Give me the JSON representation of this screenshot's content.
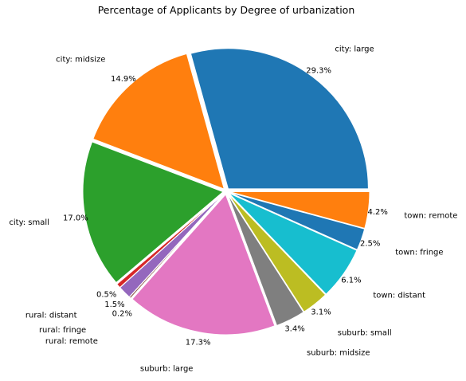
{
  "chart_data": {
    "type": "pie",
    "title": "Percentage of Applicants by Degree of urbanization",
    "slices": [
      {
        "label": "city: large",
        "value": 29.3,
        "pct_label": "29.3%",
        "color": "#1f77b4"
      },
      {
        "label": "city: midsize",
        "value": 14.9,
        "pct_label": "14.9%",
        "color": "#ff7f0e"
      },
      {
        "label": "city: small",
        "value": 17.0,
        "pct_label": "17.0%",
        "color": "#2ca02c"
      },
      {
        "label": "rural: distant",
        "value": 0.5,
        "pct_label": "0.5%",
        "color": "#d62728"
      },
      {
        "label": "rural: fringe",
        "value": 1.5,
        "pct_label": "1.5%",
        "color": "#9467bd"
      },
      {
        "label": "rural: remote",
        "value": 0.2,
        "pct_label": "0.2%",
        "color": "#8c564b"
      },
      {
        "label": "suburb: large",
        "value": 17.3,
        "pct_label": "17.3%",
        "color": "#e377c2"
      },
      {
        "label": "suburb: midsize",
        "value": 3.4,
        "pct_label": "3.4%",
        "color": "#7f7f7f"
      },
      {
        "label": "suburb: small",
        "value": 3.1,
        "pct_label": "3.1%",
        "color": "#bcbd22"
      },
      {
        "label": "town: distant",
        "value": 6.1,
        "pct_label": "6.1%",
        "color": "#17becf"
      },
      {
        "label": "town: fringe",
        "value": 2.5,
        "pct_label": "2.5%",
        "color": "#1f77b4"
      },
      {
        "label": "town: remote",
        "value": 4.2,
        "pct_label": "4.2%",
        "color": "#ff7f0e"
      }
    ]
  }
}
